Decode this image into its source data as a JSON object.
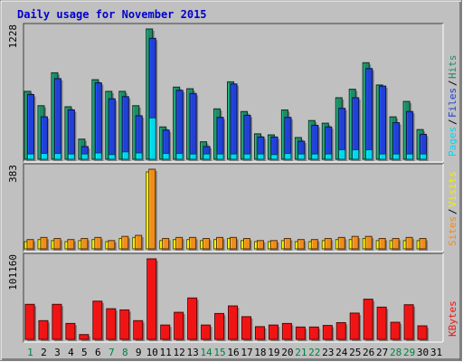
{
  "chart_data": {
    "type": "bar",
    "title": "Daily usage for November 2015",
    "categories": [
      "1",
      "2",
      "3",
      "4",
      "5",
      "6",
      "7",
      "8",
      "9",
      "10",
      "11",
      "12",
      "13",
      "14",
      "15",
      "16",
      "17",
      "18",
      "19",
      "20",
      "21",
      "22",
      "23",
      "24",
      "25",
      "26",
      "27",
      "28",
      "29",
      "30",
      "31"
    ],
    "weekend_days": [
      "1",
      "7",
      "8",
      "14",
      "15",
      "21",
      "22",
      "28",
      "29"
    ],
    "panels": [
      {
        "name": "hits-files-pages",
        "ymax_label": "1228",
        "ymax": 1228,
        "series": [
          {
            "name": "Hits",
            "color": "#1e8c64",
            "values": [
              640,
              505,
              815,
              495,
              190,
              750,
              640,
              640,
              505,
              1228,
              305,
              680,
              665,
              165,
              475,
              730,
              450,
              240,
              230,
              465,
              205,
              365,
              340,
              580,
              660,
              910,
              700,
              400,
              545,
              280,
              0
            ]
          },
          {
            "name": "Files",
            "color": "#2040d8",
            "values": [
              610,
              400,
              760,
              465,
              120,
              720,
              570,
              590,
              410,
              1140,
              275,
              650,
              620,
              120,
              395,
              710,
              415,
              210,
              210,
              395,
              170,
              320,
              305,
              480,
              580,
              855,
              690,
              345,
              450,
              235,
              0
            ]
          },
          {
            "name": "Pages",
            "color": "#00d8f0",
            "values": [
              50,
              55,
              55,
              50,
              50,
              60,
              45,
              70,
              60,
              390,
              55,
              55,
              50,
              50,
              50,
              50,
              50,
              50,
              45,
              55,
              50,
              50,
              50,
              90,
              90,
              90,
              50,
              50,
              50,
              50,
              0
            ]
          }
        ],
        "legend": [
          "Pages",
          "Files",
          "Hits"
        ]
      },
      {
        "name": "visits-sites",
        "ymax_label": "383",
        "ymax": 383,
        "series": [
          {
            "name": "Visits",
            "color": "#f0f000",
            "values": [
              35,
              45,
              40,
              35,
              40,
              45,
              35,
              50,
              55,
              370,
              40,
              45,
              45,
              40,
              45,
              50,
              40,
              35,
              35,
              40,
              35,
              35,
              40,
              45,
              45,
              50,
              40,
              40,
              40,
              40,
              0
            ]
          },
          {
            "name": "Sites",
            "color": "#f08c1e",
            "values": [
              45,
              55,
              50,
              45,
              50,
              55,
              40,
              60,
              65,
              383,
              50,
              55,
              55,
              50,
              55,
              55,
              50,
              40,
              40,
              50,
              45,
              45,
              50,
              55,
              60,
              60,
              50,
              50,
              55,
              50,
              0
            ]
          }
        ],
        "legend": [
          "Sites",
          "Visits"
        ]
      },
      {
        "name": "kbytes",
        "ymax_label": "101160",
        "ymax": 101160,
        "series": [
          {
            "name": "KBytes",
            "color": "#f01414",
            "values": [
              44000,
              23500,
              44000,
              20000,
              6000,
              48000,
              38500,
              37000,
              23500,
              101160,
              18000,
              34000,
              52000,
              18000,
              32500,
              42000,
              28500,
              16000,
              18000,
              20000,
              15500,
              15500,
              17500,
              21000,
              33000,
              50500,
              40500,
              21500,
              43500,
              17000,
              0
            ]
          }
        ],
        "legend": [
          "KBytes"
        ]
      }
    ]
  },
  "colors": {
    "background": "#c0c0c0",
    "plot_background": "#c0c0c0",
    "title": "#0000cc",
    "weekday_label": "#000000",
    "weekend_label": "#008040"
  }
}
